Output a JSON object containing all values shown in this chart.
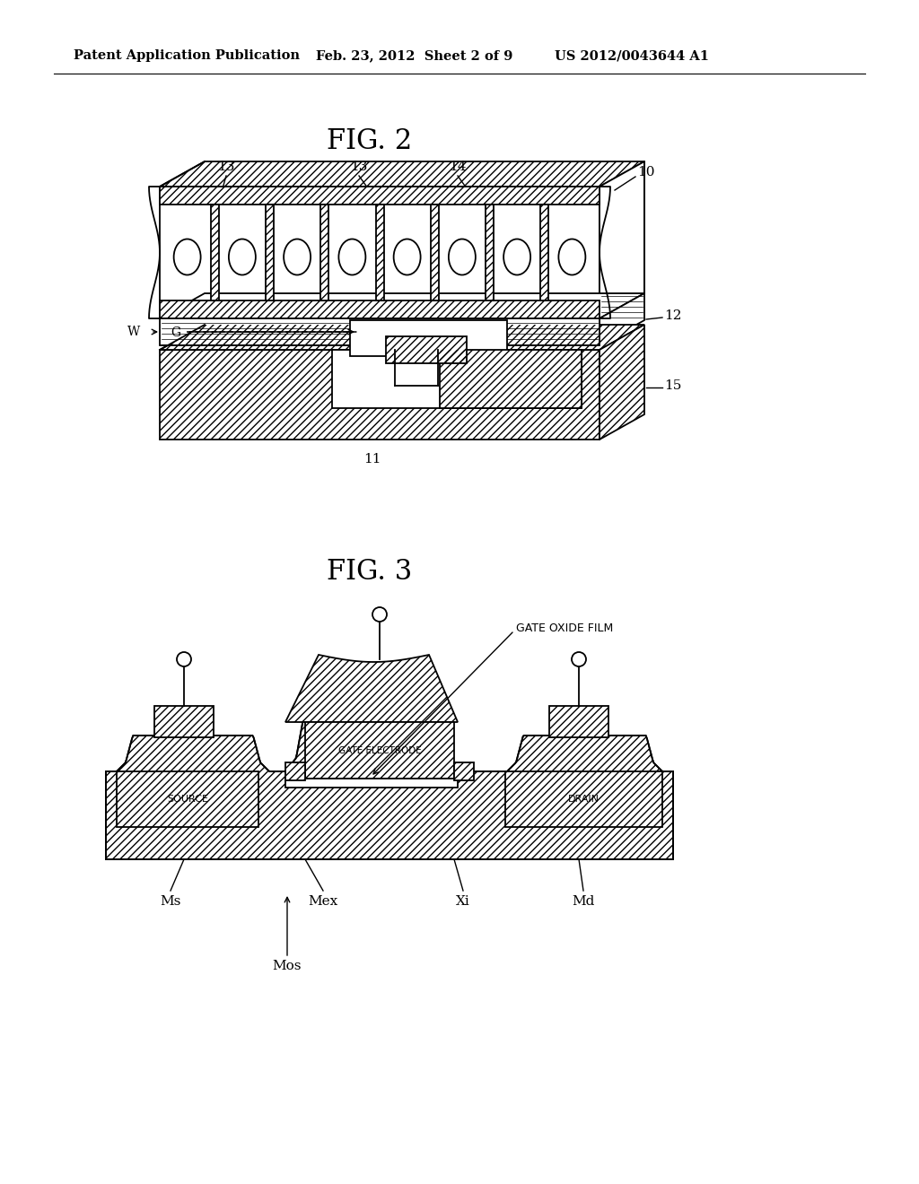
{
  "background_color": "#ffffff",
  "header": {
    "left": "Patent Application Publication",
    "center": "Feb. 23, 2012  Sheet 2 of 9",
    "right": "US 2012/0043644 A1",
    "fontsize": 11
  },
  "line_color": "#000000"
}
